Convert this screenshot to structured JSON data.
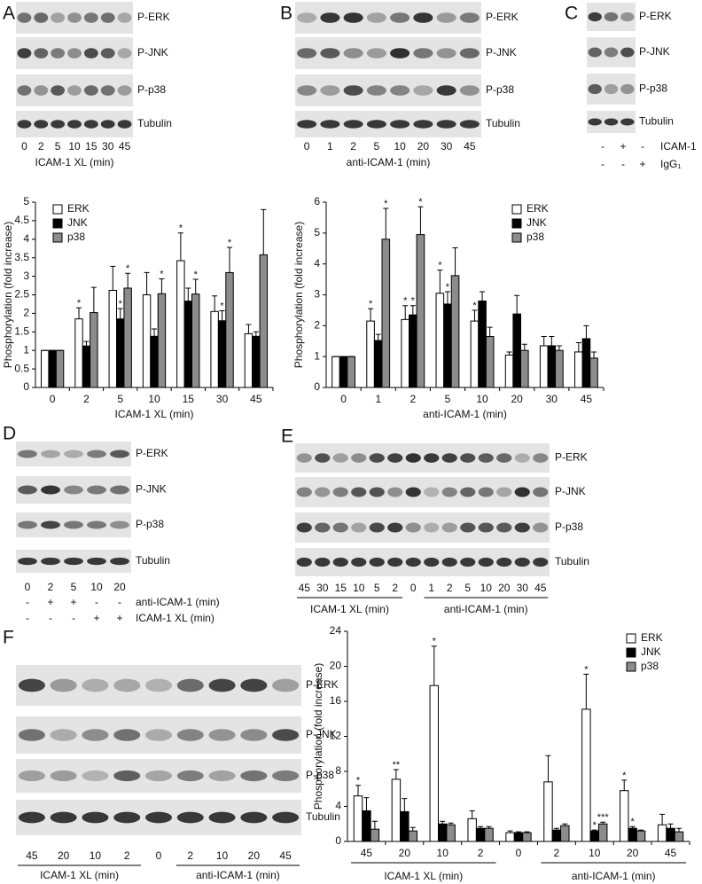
{
  "blots": [
    {
      "letter": "A",
      "rows": [
        "P-ERK",
        "P-JNK",
        "P-p38",
        "Tubulin"
      ],
      "lanes": [
        "0",
        "2",
        "5",
        "10",
        "15",
        "30",
        "45"
      ],
      "axis_label": "ICAM-1 XL (min)"
    },
    {
      "letter": "B",
      "rows": [
        "P-ERK",
        "P-JNK",
        "P-p38",
        "Tubulin"
      ],
      "lanes": [
        "0",
        "1",
        "2",
        "5",
        "10",
        "20",
        "30",
        "45"
      ],
      "axis_label": "anti-ICAM-1 (min)"
    },
    {
      "letter": "C",
      "rows": [
        "P-ERK",
        "P-JNK",
        "P-p38",
        "Tubulin"
      ],
      "conditions": [
        {
          "label": "ICAM-1",
          "marks": [
            "-",
            "+",
            "-"
          ]
        },
        {
          "label": "IgG₁",
          "marks": [
            "-",
            "-",
            "+"
          ]
        }
      ]
    },
    {
      "letter": "D",
      "rows": [
        "P-ERK",
        "P-JNK",
        "P-p38",
        "Tubulin"
      ],
      "lanes": [
        "0",
        "2",
        "5",
        "10",
        "20"
      ],
      "conditions": [
        {
          "label": "anti-ICAM-1 (min)",
          "marks": [
            "-",
            "+",
            "+",
            "-",
            "-"
          ]
        },
        {
          "label": "ICAM-1 XL (min)",
          "marks": [
            "-",
            "-",
            "-",
            "+",
            "+"
          ]
        }
      ]
    },
    {
      "letter": "E",
      "rows": [
        "P-ERK",
        "P-JNK",
        "P-p38",
        "Tubulin"
      ],
      "lanes": [
        "45",
        "30",
        "15",
        "10",
        "5",
        "2",
        "0",
        "1",
        "2",
        "5",
        "10",
        "20",
        "30",
        "45"
      ],
      "groups": [
        "ICAM-1 XL (min)",
        "anti-ICAM-1 (min)"
      ]
    },
    {
      "letter": "F",
      "rows": [
        "P-ERK",
        "P-JNK",
        "P-p38",
        "Tubulin"
      ],
      "lanes": [
        "45",
        "20",
        "10",
        "2",
        "0",
        "2",
        "10",
        "20",
        "45"
      ],
      "groups": [
        "ICAM-1 XL (min)",
        "anti-ICAM-1 (min)"
      ]
    }
  ],
  "chart_data": [
    {
      "type": "bar",
      "x_label": "ICAM-1 XL (min)",
      "y_label": "Phosphorylation (fold increase)",
      "categories": [
        "0",
        "2",
        "5",
        "10",
        "15",
        "30",
        "45"
      ],
      "ylim": [
        0,
        5
      ],
      "yticks": [
        0,
        0.5,
        1,
        1.5,
        2,
        2.5,
        3,
        3.5,
        4,
        4.5,
        5
      ],
      "legend": "upper-left",
      "series": [
        {
          "name": "ERK",
          "color": "#ffffff",
          "values": [
            1,
            1.85,
            2.62,
            2.5,
            3.42,
            2.05,
            1.45
          ],
          "errors": [
            0,
            0.3,
            0.65,
            0.6,
            0.75,
            0.42,
            0.25
          ],
          "significance": [
            null,
            "*",
            null,
            null,
            "*",
            null,
            null
          ]
        },
        {
          "name": "JNK",
          "color": "#000000",
          "values": [
            1,
            1.12,
            1.85,
            1.38,
            2.33,
            1.8,
            1.38
          ],
          "errors": [
            0,
            0.12,
            0.28,
            0.2,
            0.35,
            0.27,
            0.12
          ],
          "significance": [
            null,
            null,
            "*",
            null,
            null,
            "*",
            null
          ]
        },
        {
          "name": "p38",
          "color": "#8c8c8c",
          "values": [
            1,
            2.02,
            2.68,
            2.53,
            2.52,
            3.1,
            3.58
          ],
          "errors": [
            0,
            0.68,
            0.4,
            0.4,
            0.4,
            0.68,
            1.22
          ],
          "significance": [
            null,
            null,
            "*",
            "*",
            "*",
            "*",
            null
          ]
        }
      ]
    },
    {
      "type": "bar",
      "x_label": "anti-ICAM-1 (min)",
      "y_label": "Phosphorylation (fold increase)",
      "categories": [
        "0",
        "1",
        "2",
        "5",
        "10",
        "20",
        "30",
        "45"
      ],
      "ylim": [
        0,
        6
      ],
      "yticks": [
        0,
        1,
        2,
        3,
        4,
        5,
        6
      ],
      "legend": "upper-right",
      "series": [
        {
          "name": "ERK",
          "color": "#ffffff",
          "values": [
            1,
            2.15,
            2.2,
            3.05,
            2.15,
            1.05,
            1.35,
            1.15
          ],
          "errors": [
            0,
            0.4,
            0.45,
            0.75,
            0.35,
            0.1,
            0.3,
            0.3
          ],
          "significance": [
            null,
            "*",
            "*",
            "*",
            "*",
            null,
            null,
            null
          ]
        },
        {
          "name": "JNK",
          "color": "#000000",
          "values": [
            1,
            1.52,
            2.35,
            2.7,
            2.8,
            2.38,
            1.35,
            1.58
          ],
          "errors": [
            0,
            0.2,
            0.3,
            0.4,
            0.3,
            0.6,
            0.3,
            0.42
          ],
          "significance": [
            null,
            null,
            "*",
            "*",
            null,
            null,
            null,
            null
          ]
        },
        {
          "name": "p38",
          "color": "#8c8c8c",
          "values": [
            1,
            4.8,
            4.95,
            3.62,
            1.65,
            1.2,
            1.2,
            0.95
          ],
          "errors": [
            0,
            1.0,
            0.9,
            0.9,
            0.3,
            0.2,
            0.15,
            0.2
          ],
          "significance": [
            null,
            "*",
            "*",
            null,
            null,
            null,
            null,
            null
          ]
        }
      ]
    },
    {
      "type": "bar",
      "x_groups": [
        "ICAM-1 XL (min)",
        "anti-ICAM-1 (min)"
      ],
      "y_label": "Phosphorylation (fold increase)",
      "categories": [
        "45",
        "20",
        "10",
        "2",
        "0",
        "2",
        "10",
        "20",
        "45"
      ],
      "ylim": [
        0,
        24
      ],
      "yticks": [
        0,
        4,
        8,
        12,
        16,
        20,
        24
      ],
      "legend": "upper-right",
      "series": [
        {
          "name": "ERK",
          "color": "#ffffff",
          "values": [
            5.2,
            7.1,
            17.8,
            2.6,
            1.0,
            6.8,
            15.1,
            5.8,
            1.9
          ],
          "errors": [
            1.2,
            1.1,
            4.5,
            0.9,
            0.2,
            3.0,
            4.0,
            1.2,
            1.2
          ],
          "significance": [
            "*",
            "**",
            "*",
            null,
            null,
            null,
            "*",
            "*",
            null
          ]
        },
        {
          "name": "JNK",
          "color": "#000000",
          "values": [
            3.5,
            3.4,
            2.0,
            1.5,
            1.0,
            1.3,
            1.2,
            1.5,
            1.5
          ],
          "errors": [
            1.5,
            1.5,
            0.3,
            0.2,
            0.1,
            0.2,
            0.1,
            0.2,
            0.5
          ],
          "significance": [
            null,
            null,
            null,
            null,
            null,
            null,
            "*",
            "*",
            null
          ]
        },
        {
          "name": "p38",
          "color": "#8c8c8c",
          "values": [
            1.4,
            1.2,
            1.9,
            1.5,
            1.0,
            1.8,
            2.0,
            1.2,
            1.1
          ],
          "errors": [
            0.9,
            0.4,
            0.2,
            0.2,
            0.1,
            0.2,
            0.2,
            0.1,
            0.4
          ],
          "significance": [
            null,
            null,
            null,
            null,
            null,
            null,
            "***",
            null,
            null
          ]
        }
      ]
    }
  ]
}
